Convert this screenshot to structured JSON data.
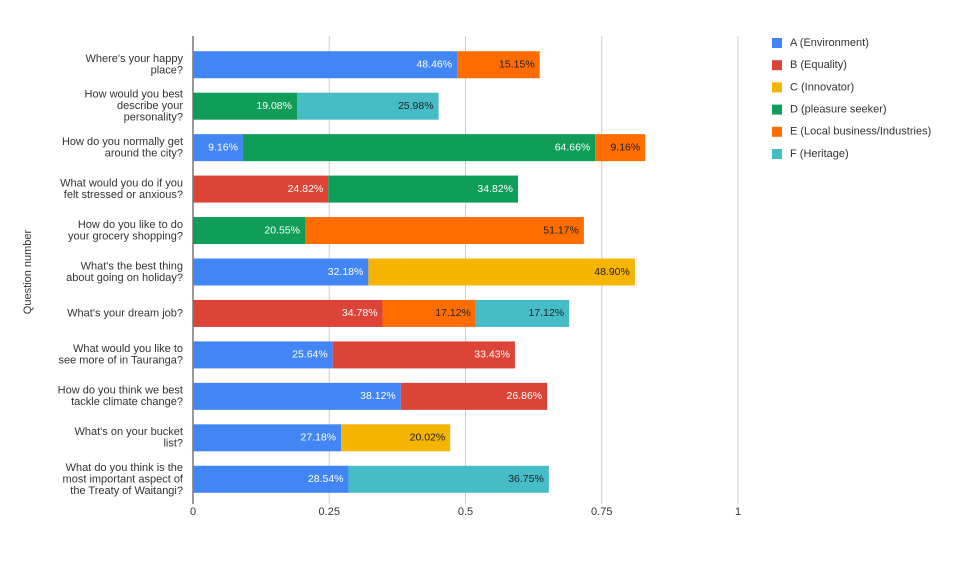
{
  "chart_data": {
    "type": "stacked_bar_horizontal",
    "y_axis_label": "Question number",
    "categories": [
      "Where's your happy\nplace?",
      "How would you best\ndescribe your\npersonality?",
      "How do you normally get\naround the city?",
      "What would you do if you\nfelt stressed or anxious?",
      "How do you like to do\nyour grocery shopping?",
      "What's the best thing\nabout going on holiday?",
      "What's your dream job?",
      "What would you like to\nsee more of in Tauranga?",
      "How do you think we best\ntackle climate change?",
      "What's on your bucket\nlist?",
      "What do you think is the\nmost important aspect of\nthe Treaty of Waitangi?"
    ],
    "series": [
      {
        "name": "A (Environment)",
        "color": "#4285f4",
        "values": [
          0.4846,
          null,
          0.0916,
          null,
          null,
          0.3218,
          null,
          0.2564,
          0.3812,
          0.2718,
          0.2854
        ],
        "value_labels": [
          "48.46%",
          null,
          "9.16%",
          null,
          null,
          "32.18%",
          null,
          "25.64%",
          "38.12%",
          "27.18%",
          "28.54%"
        ]
      },
      {
        "name": "B (Equality)",
        "color": "#db4437",
        "values": [
          null,
          null,
          null,
          0.2482,
          null,
          null,
          0.3478,
          0.3343,
          0.2686,
          null,
          null
        ],
        "value_labels": [
          null,
          null,
          null,
          "24.82%",
          null,
          null,
          "34.78%",
          "33.43%",
          "26.86%",
          null,
          null
        ]
      },
      {
        "name": "C (Innovator)",
        "color": "#f4b400",
        "values": [
          null,
          null,
          null,
          null,
          null,
          0.489,
          null,
          null,
          null,
          0.2002,
          null
        ],
        "value_labels": [
          null,
          null,
          null,
          null,
          null,
          "48.90%",
          null,
          null,
          null,
          "20.02%",
          null
        ]
      },
      {
        "name": "D (pleasure seeker)",
        "color": "#0f9d58",
        "values": [
          null,
          0.1908,
          0.6466,
          0.3482,
          0.2055,
          null,
          null,
          null,
          null,
          null,
          null
        ],
        "value_labels": [
          null,
          "19.08%",
          "64.66%",
          "34.82%",
          "20.55%",
          null,
          null,
          null,
          null,
          null,
          null
        ]
      },
      {
        "name": "E (Local business/Industries)",
        "color": "#ff6d00",
        "values": [
          0.1515,
          null,
          0.0916,
          null,
          0.5117,
          null,
          0.1712,
          null,
          null,
          null,
          null
        ],
        "value_labels": [
          "15.15%",
          null,
          "9.16%",
          null,
          "51.17%",
          null,
          "17.12%",
          null,
          null,
          null,
          null
        ]
      },
      {
        "name": "F (Heritage)",
        "color": "#46bdc6",
        "values": [
          null,
          0.2598,
          null,
          null,
          null,
          null,
          0.1712,
          null,
          null,
          null,
          0.3675
        ],
        "value_labels": [
          null,
          "25.98%",
          null,
          null,
          null,
          null,
          "17.12%",
          null,
          null,
          null,
          "36.75%"
        ]
      }
    ],
    "xlim": [
      0,
      1
    ],
    "xticks": [
      0,
      0.25,
      0.5,
      0.75,
      1
    ],
    "grid": true,
    "legend": "right"
  }
}
